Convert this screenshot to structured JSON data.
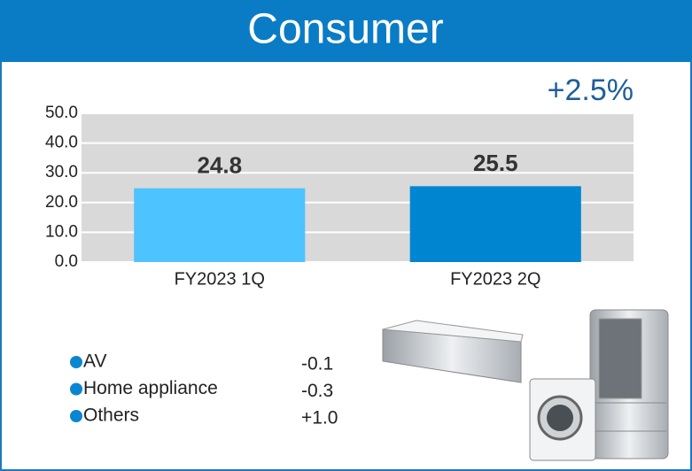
{
  "chart_data": {
    "type": "bar",
    "title": "Consumer",
    "annotation": "+2.5%",
    "categories": [
      "FY2023 1Q",
      "FY2023 2Q"
    ],
    "values": [
      24.8,
      25.5
    ],
    "colors": [
      "#4dc3ff",
      "#0086d1"
    ],
    "ylim": [
      0,
      50
    ],
    "yticks": [
      {
        "value": 0,
        "label": "0.0"
      },
      {
        "value": 10,
        "label": "10.0"
      },
      {
        "value": 20,
        "label": "20.0"
      },
      {
        "value": 30,
        "label": "30.0"
      },
      {
        "value": 40,
        "label": "40.0"
      },
      {
        "value": 50,
        "label": "50.0"
      }
    ],
    "grid": true
  },
  "breakdown": [
    {
      "label": "AV",
      "value": "-0.1"
    },
    {
      "label": "Home appliance",
      "value": "-0.3"
    },
    {
      "label": "Others",
      "value": "+1.0"
    }
  ]
}
